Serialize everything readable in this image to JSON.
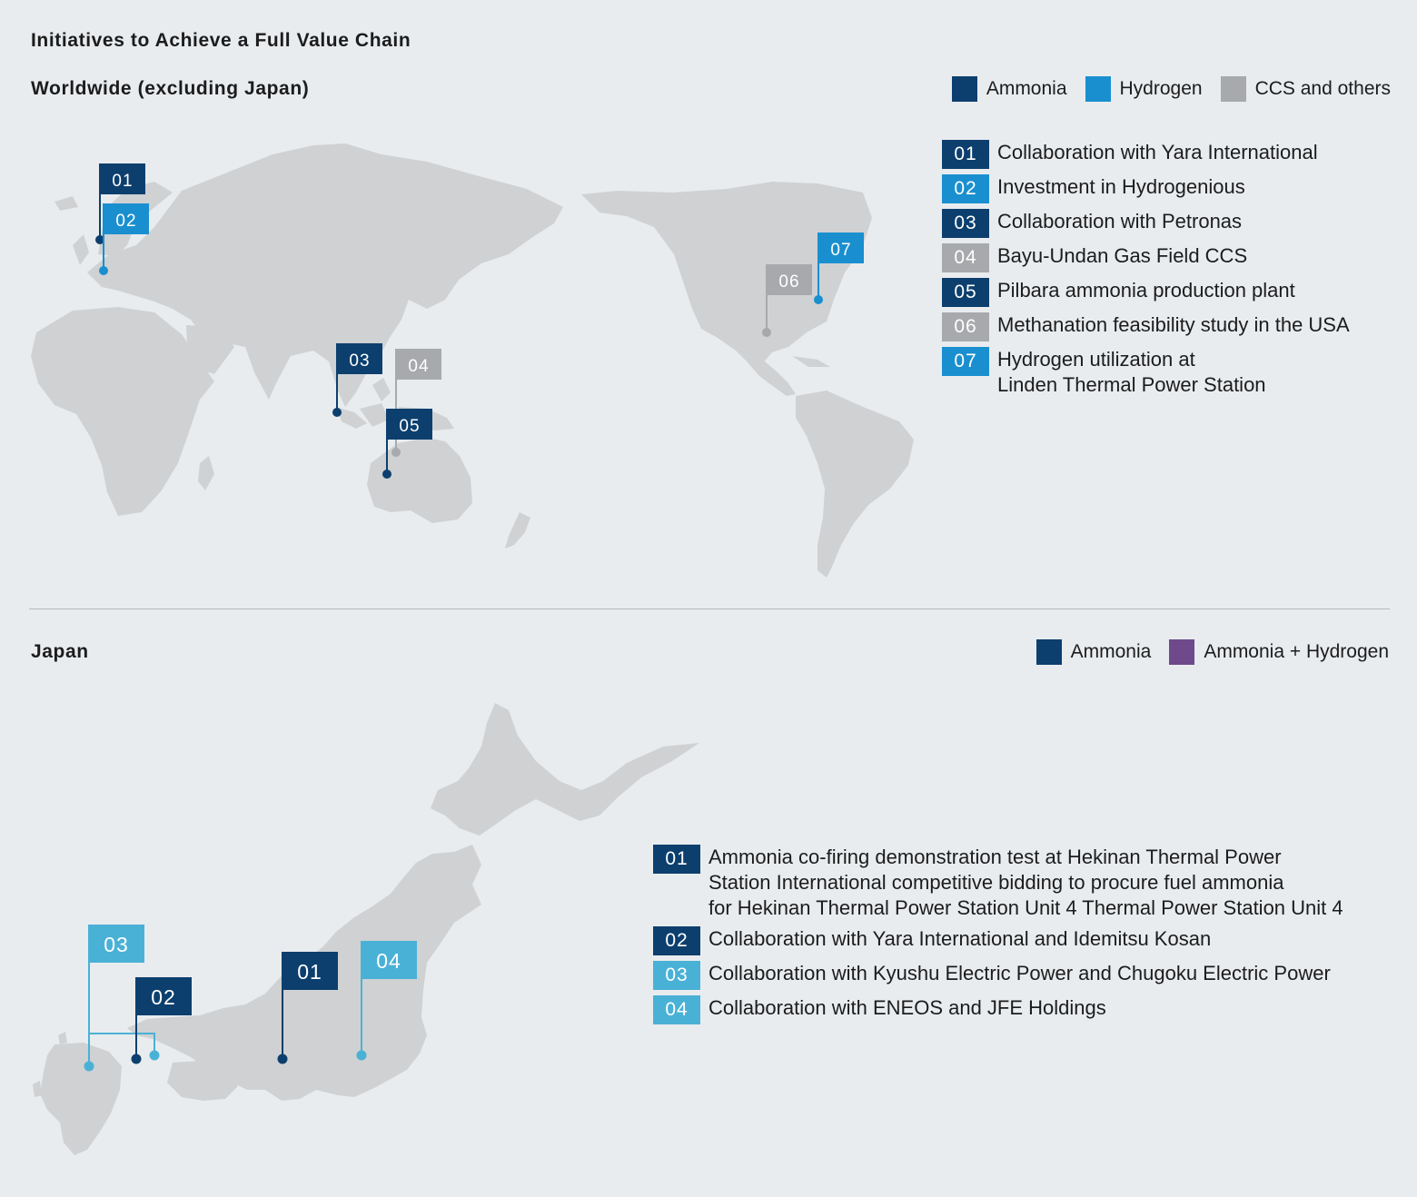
{
  "title": "Initiatives to Achieve a Full Value Chain",
  "colors": {
    "ammonia": "#0c3f6e",
    "hydrogen": "#1a8fd0",
    "ccs": "#a7a9ac",
    "jp_light": "#4ab1d6",
    "ammonia_hydrogen": "#6e4a8c",
    "land": "#cfd1d3",
    "background": "#e9ecef"
  },
  "worldwide": {
    "heading": "Worldwide (excluding Japan)",
    "legend": [
      {
        "label": "Ammonia",
        "color": "#0c3f6e"
      },
      {
        "label": "Hydrogen",
        "color": "#1a8fd0"
      },
      {
        "label": "CCS and others",
        "color": "#a7a9ac"
      }
    ],
    "items": [
      {
        "num": "01",
        "lines": [
          "Collaboration with Yara International"
        ],
        "color": "#0c3f6e"
      },
      {
        "num": "02",
        "lines": [
          "Investment in Hydrogenious"
        ],
        "color": "#1a8fd0"
      },
      {
        "num": "03",
        "lines": [
          "Collaboration with Petronas"
        ],
        "color": "#0c3f6e"
      },
      {
        "num": "04",
        "lines": [
          "Bayu-Undan Gas Field CCS"
        ],
        "color": "#a7a9ac"
      },
      {
        "num": "05",
        "lines": [
          "Pilbara ammonia production plant"
        ],
        "color": "#0c3f6e"
      },
      {
        "num": "06",
        "lines": [
          "Methanation feasibility study in the USA"
        ],
        "color": "#a7a9ac"
      },
      {
        "num": "07",
        "lines": [
          "Hydrogen utilization at",
          "Linden Thermal Power Station"
        ],
        "color": "#1a8fd0"
      }
    ],
    "flags": [
      {
        "num": "01",
        "color": "#0c3f6e"
      },
      {
        "num": "02",
        "color": "#1a8fd0"
      },
      {
        "num": "03",
        "color": "#0c3f6e"
      },
      {
        "num": "04",
        "color": "#a7a9ac"
      },
      {
        "num": "05",
        "color": "#0c3f6e"
      },
      {
        "num": "06",
        "color": "#a7a9ac"
      },
      {
        "num": "07",
        "color": "#1a8fd0"
      }
    ]
  },
  "japan": {
    "heading": "Japan",
    "legend": [
      {
        "label": "Ammonia",
        "color": "#0c3f6e"
      },
      {
        "label": "Ammonia + Hydrogen",
        "color": "#6e4a8c"
      }
    ],
    "items": [
      {
        "num": "01",
        "lines": [
          "Ammonia co-firing demonstration test at Hekinan Thermal Power",
          "Station International competitive bidding to procure fuel ammonia",
          "for Hekinan Thermal Power Station Unit 4 Thermal Power Station Unit 4"
        ],
        "color": "#0c3f6e"
      },
      {
        "num": "02",
        "lines": [
          "Collaboration with Yara International and Idemitsu Kosan"
        ],
        "color": "#0c3f6e"
      },
      {
        "num": "03",
        "lines": [
          "Collaboration with Kyushu Electric Power and Chugoku Electric Power"
        ],
        "color": "#4ab1d6"
      },
      {
        "num": "04",
        "lines": [
          "Collaboration with ENEOS and JFE Holdings"
        ],
        "color": "#4ab1d6"
      }
    ],
    "flags": [
      {
        "num": "01",
        "color": "#0c3f6e"
      },
      {
        "num": "02",
        "color": "#0c3f6e"
      },
      {
        "num": "03",
        "color": "#4ab1d6"
      },
      {
        "num": "04",
        "color": "#4ab1d6"
      }
    ]
  }
}
